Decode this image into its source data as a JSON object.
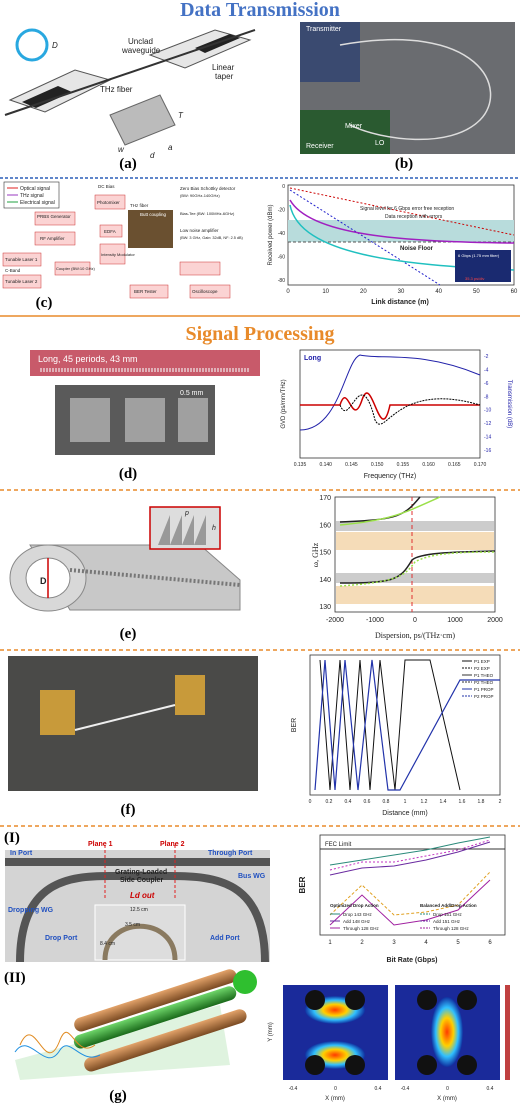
{
  "sections": {
    "transmission": "Data Transmission",
    "processing": "Signal Processing"
  },
  "a": {
    "label": "(a)",
    "unclad": "Unclad",
    "waveguide": "waveguide",
    "fiber": "THz fiber",
    "linear": "Linear",
    "taper": "taper",
    "D": "D",
    "T": "T",
    "w": "w",
    "d": "d",
    "a": "a"
  },
  "b": {
    "label": "(b)",
    "transmitter": "Transmitter",
    "receiver": "Receiver",
    "mixer": "Mixer",
    "lo": "LO"
  },
  "c": {
    "label": "(c)",
    "diagram": {
      "optical": "Optical signal",
      "thz": "THz signal",
      "electrical": "Electrical signal",
      "prbs": "PRBS Generator",
      "rf": "RF Amplifier",
      "laser1": "Tunable Laser 1",
      "cband": "C-Band",
      "laser2": "Tunable Laser 2",
      "coupler": "Coupler (BW:10 GHz)",
      "edfa": "EDFA",
      "modulator": "Intensity Modulator",
      "dcbias": "DC Bias",
      "photomixer": "Photomixer",
      "fiber": "THz fiber",
      "butt": "Butt coupling",
      "zero": "Zero Bias Schottky detector",
      "zerobw": "(BW: 90GHz-140GHz)",
      "biastee": "Bias-Tee (BW: 100MHz-6GHz)",
      "lna": "Low noise amplifier",
      "lnabw": "(BW: 3 GHz, Gain: 32dB, NF: 2.5 dB)",
      "ber": "BER Tester",
      "osc": "Oscilloscope"
    },
    "chart": {
      "ylabel": "Received power (dBm)",
      "xlabel": "Link distance (m)",
      "xticks": [
        "0",
        "10",
        "20",
        "30",
        "40",
        "50",
        "60"
      ],
      "yticks": [
        "0",
        "-20",
        "-40",
        "-60",
        "-80"
      ],
      "errorfree": "Signal level for 6 Gbps error free reception",
      "errors": "Data reception with errors",
      "noise": "Noise Floor",
      "eye": "6 Gbps (1.75 mm fiber)",
      "div": "35.3 ps/div"
    }
  },
  "d": {
    "label": "(d)",
    "long": "Long, 45 periods, 43 mm",
    "scale": "0.5 mm",
    "chart": {
      "ylabel": "GVD (ps/mm/THz)",
      "y2label": "Transmission (dB)",
      "xlabel": "Frequency (THz)",
      "tag": "Long",
      "xticks": [
        "0.135",
        "0.140",
        "0.145",
        "0.150",
        "0.155",
        "0.160",
        "0.165",
        "0.170"
      ],
      "y2ticks": [
        "-2",
        "-4",
        "-6",
        "-8",
        "-10",
        "-12",
        "-14",
        "-16"
      ]
    }
  },
  "e": {
    "label": "(e)",
    "D": "D",
    "p": "p",
    "h": "h",
    "chart": {
      "ylabel": "ω, GHz",
      "xlabel": "Dispersion, ps/(THz·cm)",
      "yticks": [
        "130",
        "140",
        "150",
        "160",
        "170"
      ],
      "xticks": [
        "-2000",
        "-1000",
        "0",
        "1000",
        "2000"
      ]
    }
  },
  "f": {
    "label": "(f)",
    "chart": {
      "ylabel": "BER",
      "xlabel": "Distance (mm)",
      "xticks": [
        "0",
        "0.2",
        "0.4",
        "0.6",
        "0.8",
        "1",
        "1.2",
        "1.4",
        "1.6",
        "1.8",
        "2"
      ],
      "legend": [
        "P1 EXP",
        "P2 EXP",
        "P1 THEO",
        "P2 THEO",
        "P1 PROP",
        "P2 PROP"
      ]
    }
  },
  "g": {
    "label": "(g)",
    "part1": "(I)",
    "part2": "(II)",
    "coupler": {
      "inport": "In Port",
      "plane1": "Plane 1",
      "plane2": "Plane 2",
      "through": "Through Port",
      "grating": "Grating-Loaded",
      "side": "Side Coupler",
      "bus": "Bus WG",
      "dropping": "Dropping WG",
      "drop": "Drop Port",
      "add": "Add Port",
      "ld": "Ld out",
      "len1": "12.5 cm",
      "len2": "3.5 cm",
      "len3": "8.4 cm"
    },
    "berchart": {
      "fec": "FEC Limit",
      "ylabel": "BER",
      "xlabel": "Bit Rate (Gbps)",
      "xticks": [
        "1",
        "2",
        "3",
        "4",
        "5",
        "6"
      ],
      "opt": "Optimized Drop Action",
      "bal": "Balanced Add/Drop Action",
      "optlegend": [
        "Drop 143 GHz",
        "Add 148 GHz",
        "Through 128 GHz"
      ],
      "ballegend": [
        "Drop 151 GHz",
        "Add 151 GHz",
        "Through 128 GHz"
      ]
    },
    "field": {
      "ylabel": "Y (mm)",
      "xlabel": "X (mm)",
      "xticks": [
        "-0.4",
        "0",
        "0.4"
      ]
    }
  }
}
